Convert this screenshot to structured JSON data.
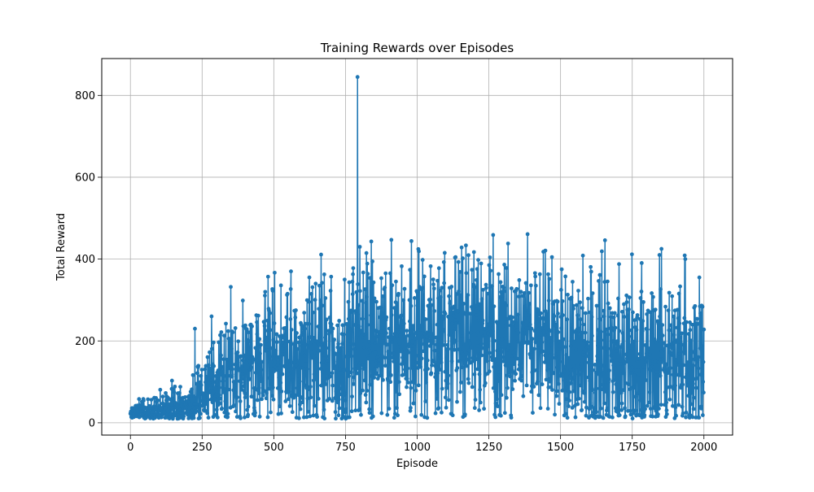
{
  "chart_data": {
    "type": "line",
    "title": "Training Rewards over Episodes",
    "xlabel": "Episode",
    "ylabel": "Total Reward",
    "xlim": [
      -100,
      2100
    ],
    "ylim": [
      -30,
      890
    ],
    "xticks": [
      0,
      250,
      500,
      750,
      1000,
      1250,
      1500,
      1750,
      2000
    ],
    "yticks": [
      0,
      200,
      400,
      600,
      800
    ],
    "grid": true,
    "marker": "circle",
    "line_color": "#1f77b4",
    "episodes": 2000,
    "trend_mean": [
      {
        "x": 0,
        "y": 20
      },
      {
        "x": 100,
        "y": 30
      },
      {
        "x": 200,
        "y": 40
      },
      {
        "x": 300,
        "y": 85
      },
      {
        "x": 400,
        "y": 120
      },
      {
        "x": 500,
        "y": 140
      },
      {
        "x": 600,
        "y": 150
      },
      {
        "x": 700,
        "y": 150
      },
      {
        "x": 800,
        "y": 190
      },
      {
        "x": 900,
        "y": 200
      },
      {
        "x": 1000,
        "y": 200
      },
      {
        "x": 1100,
        "y": 200
      },
      {
        "x": 1200,
        "y": 210
      },
      {
        "x": 1300,
        "y": 205
      },
      {
        "x": 1400,
        "y": 200
      },
      {
        "x": 1500,
        "y": 170
      },
      {
        "x": 1600,
        "y": 160
      },
      {
        "x": 1700,
        "y": 155
      },
      {
        "x": 1800,
        "y": 160
      },
      {
        "x": 1900,
        "y": 160
      },
      {
        "x": 2000,
        "y": 160
      }
    ],
    "trend_spread": [
      {
        "x": 0,
        "y": 15
      },
      {
        "x": 100,
        "y": 25
      },
      {
        "x": 200,
        "y": 35
      },
      {
        "x": 300,
        "y": 60
      },
      {
        "x": 400,
        "y": 90
      },
      {
        "x": 500,
        "y": 110
      },
      {
        "x": 600,
        "y": 120
      },
      {
        "x": 700,
        "y": 130
      },
      {
        "x": 800,
        "y": 110
      },
      {
        "x": 1000,
        "y": 110
      },
      {
        "x": 1200,
        "y": 110
      },
      {
        "x": 1400,
        "y": 115
      },
      {
        "x": 1600,
        "y": 125
      },
      {
        "x": 1800,
        "y": 130
      },
      {
        "x": 2000,
        "y": 130
      }
    ],
    "notable_points": [
      {
        "x": 2,
        "y": 28
      },
      {
        "x": 30,
        "y": 58
      },
      {
        "x": 145,
        "y": 103
      },
      {
        "x": 225,
        "y": 230
      },
      {
        "x": 283,
        "y": 260
      },
      {
        "x": 350,
        "y": 332
      },
      {
        "x": 470,
        "y": 320
      },
      {
        "x": 480,
        "y": 357
      },
      {
        "x": 560,
        "y": 370
      },
      {
        "x": 665,
        "y": 411
      },
      {
        "x": 700,
        "y": 357
      },
      {
        "x": 792,
        "y": 845
      },
      {
        "x": 800,
        "y": 430
      },
      {
        "x": 840,
        "y": 443
      },
      {
        "x": 910,
        "y": 447
      },
      {
        "x": 980,
        "y": 444
      },
      {
        "x": 1085,
        "y": 25
      },
      {
        "x": 1265,
        "y": 459
      },
      {
        "x": 1385,
        "y": 461
      },
      {
        "x": 1440,
        "y": 418
      },
      {
        "x": 1480,
        "y": 20
      },
      {
        "x": 1655,
        "y": 446
      },
      {
        "x": 1845,
        "y": 410
      },
      {
        "x": 1935,
        "y": 400
      },
      {
        "x": 2000,
        "y": 228
      }
    ]
  }
}
